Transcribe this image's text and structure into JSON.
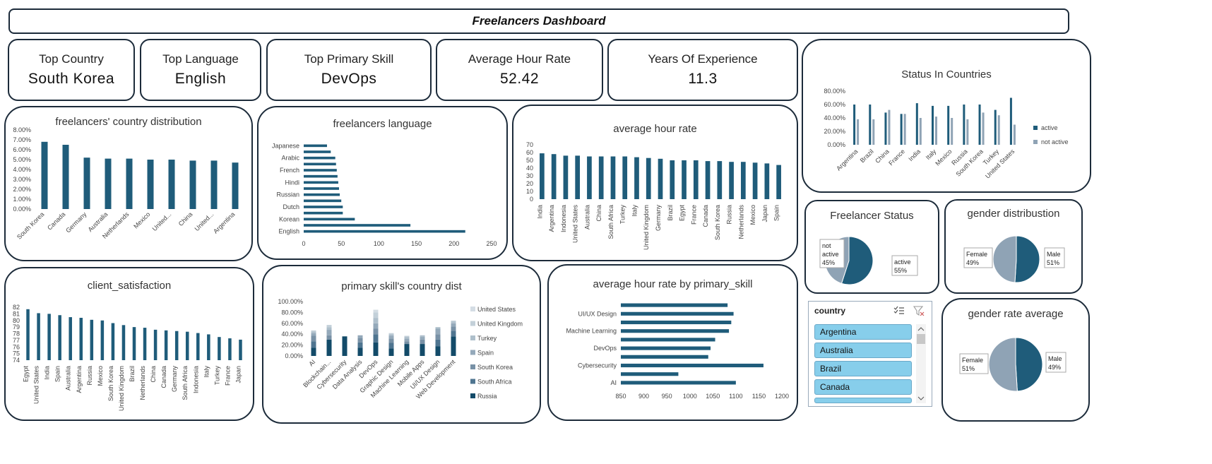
{
  "dashboard": {
    "title": "Freelancers Dashboard"
  },
  "kpis": [
    {
      "label": "Top Country",
      "value": "South Korea"
    },
    {
      "label": "Top Language",
      "value": "English"
    },
    {
      "label": "Top Primary Skill",
      "value": "DevOps"
    },
    {
      "label": "Average Hour Rate",
      "value": "52.42"
    },
    {
      "label": "Years Of Experience",
      "value": "11.3"
    }
  ],
  "colors": {
    "primary": "#1f5c7a",
    "secondary": "#8fa3b5",
    "light": "#c4ced8",
    "border": "#1c2b3a",
    "slicer": "#87ceeb"
  },
  "slicer": {
    "header": "country",
    "items": [
      "Argentina",
      "Australia",
      "Brazil",
      "Canada"
    ]
  },
  "chart_data": [
    {
      "id": "status_countries",
      "type": "bar",
      "title": "Status In Countries",
      "categories": [
        "Argentina",
        "Brazil",
        "China",
        "France",
        "India",
        "Italy",
        "Mexico",
        "Russia",
        "South Korea",
        "Turkey",
        "United States"
      ],
      "series": [
        {
          "name": "active",
          "values": [
            60,
            60,
            48,
            46,
            62,
            58,
            58,
            60,
            60,
            52,
            70
          ]
        },
        {
          "name": "not active",
          "values": [
            38,
            38,
            52,
            46,
            40,
            42,
            40,
            38,
            48,
            44,
            30
          ]
        }
      ],
      "yticks": [
        "0.00%",
        "20.00%",
        "40.00%",
        "60.00%",
        "80.00%"
      ],
      "ylim": [
        0,
        80
      ],
      "legend": "right"
    },
    {
      "id": "country_distribution",
      "type": "bar",
      "title": "freelancers' country distribution",
      "categories": [
        "South Korea",
        "Canada",
        "Germany",
        "Australia",
        "Netherlands",
        "Mexico",
        "United...",
        "China",
        "United...",
        "Argentina"
      ],
      "values": [
        6.8,
        6.5,
        5.2,
        5.1,
        5.1,
        5.0,
        5.0,
        4.9,
        4.9,
        4.7
      ],
      "yticks": [
        "0.00%",
        "1.00%",
        "2.00%",
        "3.00%",
        "4.00%",
        "5.00%",
        "6.00%",
        "7.00%",
        "8.00%"
      ],
      "ylim": [
        0,
        8
      ]
    },
    {
      "id": "language",
      "type": "bar",
      "title": "freelancers language",
      "orientation": "horizontal",
      "categories": [
        "English",
        "",
        "Korean",
        "",
        "Dutch",
        "",
        "Russian",
        "",
        "Hindi",
        "",
        "French",
        "",
        "Arabic",
        "",
        "Japanese"
      ],
      "values": [
        215,
        142,
        68,
        52,
        52,
        50,
        48,
        47,
        46,
        45,
        44,
        43,
        42,
        36,
        31
      ],
      "xticks": [
        "0",
        "50",
        "100",
        "150",
        "200",
        "250"
      ],
      "xlim": [
        0,
        250
      ]
    },
    {
      "id": "average_hour_rate",
      "type": "bar",
      "title": "average hour rate",
      "categories": [
        "India",
        "Argentina",
        "Indonesia",
        "United States",
        "Australia",
        "China",
        "South Africa",
        "Turkey",
        "Italy",
        "United Kingdom",
        "Germany",
        "Brazil",
        "Egypt",
        "France",
        "Canada",
        "South Korea",
        "Russia",
        "Netherlands",
        "Mexico",
        "Japan",
        "Spain"
      ],
      "values": [
        59,
        58,
        56,
        56,
        55,
        55,
        55,
        55,
        54,
        53,
        52,
        50,
        50,
        50,
        49,
        49,
        48,
        48,
        47,
        46,
        44
      ],
      "yticks": [
        "0",
        "10",
        "20",
        "30",
        "40",
        "50",
        "60",
        "70"
      ],
      "ylim": [
        0,
        70
      ]
    },
    {
      "id": "client_satisfaction",
      "type": "bar",
      "title": "client_satisfaction",
      "categories": [
        "Egypt",
        "United States",
        "India",
        "Spain",
        "Australia",
        "Argentina",
        "Russia",
        "Mexico",
        "South Korea",
        "United Kingdom",
        "Brazil",
        "Netherlands",
        "China",
        "Canada",
        "Germany",
        "South Africa",
        "Indonesia",
        "Italy",
        "Turkey",
        "France",
        "Japan"
      ],
      "values": [
        81.7,
        81.1,
        81.0,
        80.8,
        80.5,
        80.4,
        80.1,
        80.0,
        79.6,
        79.3,
        79.0,
        78.9,
        78.6,
        78.5,
        78.4,
        78.3,
        78.1,
        77.9,
        77.5,
        77.3,
        77.1
      ],
      "yticks": [
        "74",
        "75",
        "76",
        "77",
        "78",
        "79",
        "80",
        "81",
        "82"
      ],
      "ylim": [
        74,
        82
      ]
    },
    {
      "id": "skill_country",
      "type": "bar",
      "stacked": true,
      "title": "primary skill's country dist",
      "categories": [
        "AI",
        "Blockchain...",
        "Cybersecurity",
        "Data Analysis",
        "DevOps",
        "Graphic Design",
        "Machine Learning",
        "Mobile Apps",
        "UI/UX Design",
        "Web Development"
      ],
      "series": [
        {
          "name": "Russia",
          "values": [
            15,
            30,
            36,
            15,
            25,
            14,
            22,
            22,
            18,
            36
          ]
        },
        {
          "name": "South Africa",
          "values": [
            12,
            0,
            0,
            10,
            15,
            10,
            0,
            0,
            12,
            10
          ]
        },
        {
          "name": "South Korea",
          "values": [
            10,
            8,
            0,
            8,
            10,
            8,
            5,
            8,
            10,
            8
          ]
        },
        {
          "name": "Spain",
          "values": [
            5,
            10,
            0,
            5,
            10,
            5,
            5,
            5,
            10,
            6
          ]
        },
        {
          "name": "Turkey",
          "values": [
            3,
            5,
            0,
            0,
            10,
            3,
            3,
            3,
            3,
            3
          ]
        },
        {
          "name": "United Kingdom",
          "values": [
            2,
            4,
            0,
            0,
            10,
            2,
            2,
            0,
            0,
            2
          ]
        },
        {
          "name": "United States",
          "values": [
            0,
            0,
            0,
            0,
            5,
            0,
            0,
            0,
            0,
            0
          ]
        }
      ],
      "legend_order": [
        "United States",
        "United Kingdom",
        "Turkey",
        "Spain",
        "South Korea",
        "South Africa",
        "Russia"
      ],
      "yticks": [
        "0.00%",
        "20.00%",
        "40.00%",
        "60.00%",
        "80.00%",
        "100.00%"
      ],
      "ylim": [
        0,
        100
      ]
    },
    {
      "id": "rate_by_skill",
      "type": "bar",
      "orientation": "horizontal",
      "title": "average hour rate by primary_skill",
      "categories": [
        "AI",
        "",
        "Cybersecurity",
        "",
        "DevOps",
        "",
        "Machine Learning",
        "",
        "UI/UX Design",
        ""
      ],
      "values": [
        1100,
        975,
        1160,
        1040,
        1045,
        1055,
        1085,
        1090,
        1095,
        1082
      ],
      "xticks": [
        "850",
        "900",
        "950",
        "1000",
        "1050",
        "1100",
        "1150",
        "1200"
      ],
      "xlim": [
        850,
        1200
      ]
    },
    {
      "id": "freelancer_status",
      "type": "pie",
      "title": "Freelancer Status",
      "slices": [
        {
          "name": "active",
          "value": 55,
          "label": "55%"
        },
        {
          "name": "not active",
          "value": 45,
          "label": "45%"
        }
      ]
    },
    {
      "id": "gender_distribution",
      "type": "pie",
      "title": "gender distribustion",
      "slices": [
        {
          "name": "Male",
          "value": 51,
          "label": "51%"
        },
        {
          "name": "Female",
          "value": 49,
          "label": "49%"
        }
      ]
    },
    {
      "id": "gender_rate",
      "type": "pie",
      "title": "gender rate average",
      "slices": [
        {
          "name": "Male",
          "value": 49,
          "label": "49%"
        },
        {
          "name": "Female",
          "value": 51,
          "label": "51%"
        }
      ]
    }
  ]
}
